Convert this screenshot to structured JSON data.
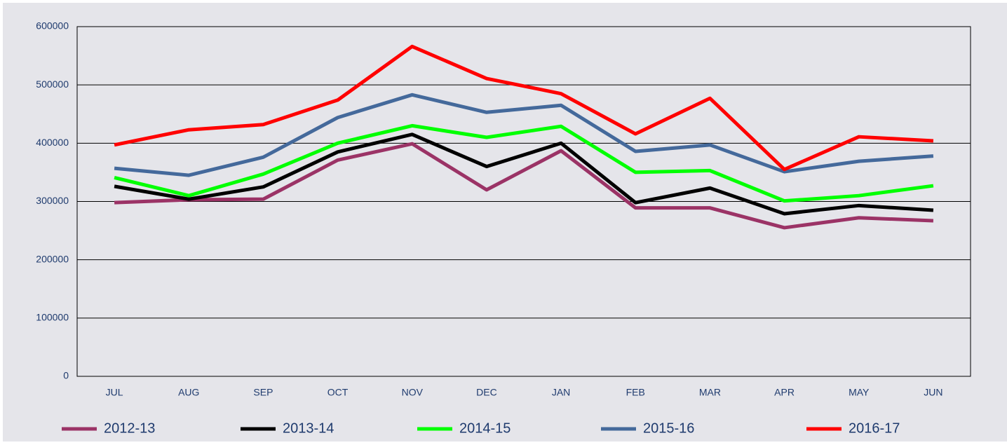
{
  "chart_data": {
    "type": "line",
    "categories": [
      "JUL",
      "AUG",
      "SEP",
      "OCT",
      "NOV",
      "DEC",
      "JAN",
      "FEB",
      "MAR",
      "APR",
      "MAY",
      "JUN"
    ],
    "series": [
      {
        "name": "2012-13",
        "color": "#9b3366",
        "values": [
          298000,
          303000,
          304000,
          371000,
          399000,
          320000,
          387000,
          289000,
          289000,
          255000,
          272000,
          267000
        ]
      },
      {
        "name": "2013-14",
        "color": "#000000",
        "values": [
          326000,
          304000,
          325000,
          385000,
          415000,
          360000,
          400000,
          298000,
          323000,
          279000,
          293000,
          285000
        ]
      },
      {
        "name": "2014-15",
        "color": "#00ff00",
        "values": [
          341000,
          310000,
          347000,
          400000,
          430000,
          410000,
          429000,
          350000,
          353000,
          301000,
          310000,
          327000
        ]
      },
      {
        "name": "2015-16",
        "color": "#44699b",
        "values": [
          357000,
          345000,
          376000,
          444000,
          483000,
          453000,
          465000,
          386000,
          397000,
          351000,
          369000,
          378000
        ]
      },
      {
        "name": "2016-17",
        "color": "#ff0000",
        "values": [
          397000,
          423000,
          432000,
          474000,
          566000,
          511000,
          485000,
          416000,
          477000,
          355000,
          411000,
          404000
        ]
      }
    ],
    "ylim": [
      0,
      600000
    ],
    "yticks": [
      0,
      100000,
      200000,
      300000,
      400000,
      500000,
      600000
    ],
    "grid": true,
    "legend": "bottom"
  }
}
